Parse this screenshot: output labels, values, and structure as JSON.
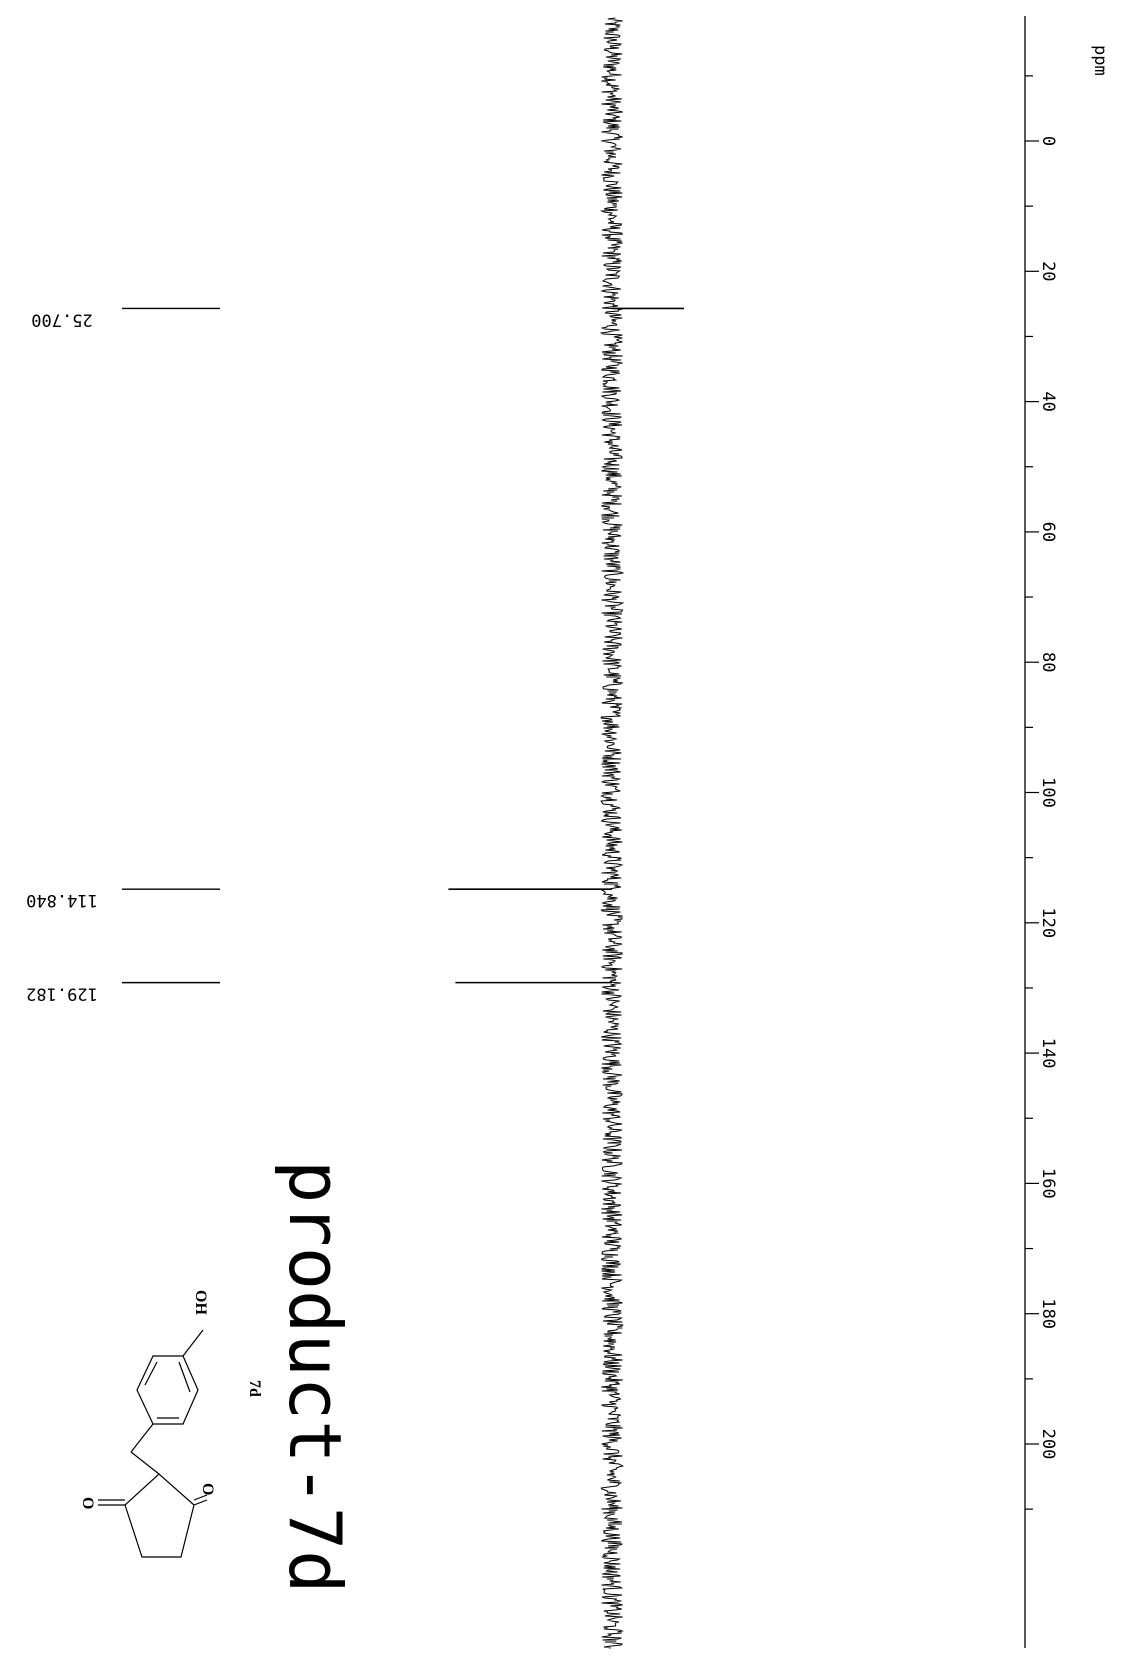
{
  "chart_data": {
    "type": "line",
    "title": "product-7d",
    "xlabel": "ppm",
    "xlim": [
      220,
      -20
    ],
    "ticks": [
      0,
      20,
      40,
      60,
      80,
      100,
      120,
      140,
      160,
      180,
      200
    ],
    "peaks": [
      {
        "ppm": 25.7,
        "label": "25.700",
        "intensity": 0.12
      },
      {
        "ppm": 114.84,
        "label": "114.840",
        "intensity": 0.47
      },
      {
        "ppm": 129.182,
        "label": "129.182",
        "intensity": 0.45
      }
    ],
    "noise_level": 0.04,
    "grid": false
  },
  "structure": {
    "compound_label": "7d",
    "oxygen_label": "O",
    "hydroxyl_label": "OH"
  }
}
